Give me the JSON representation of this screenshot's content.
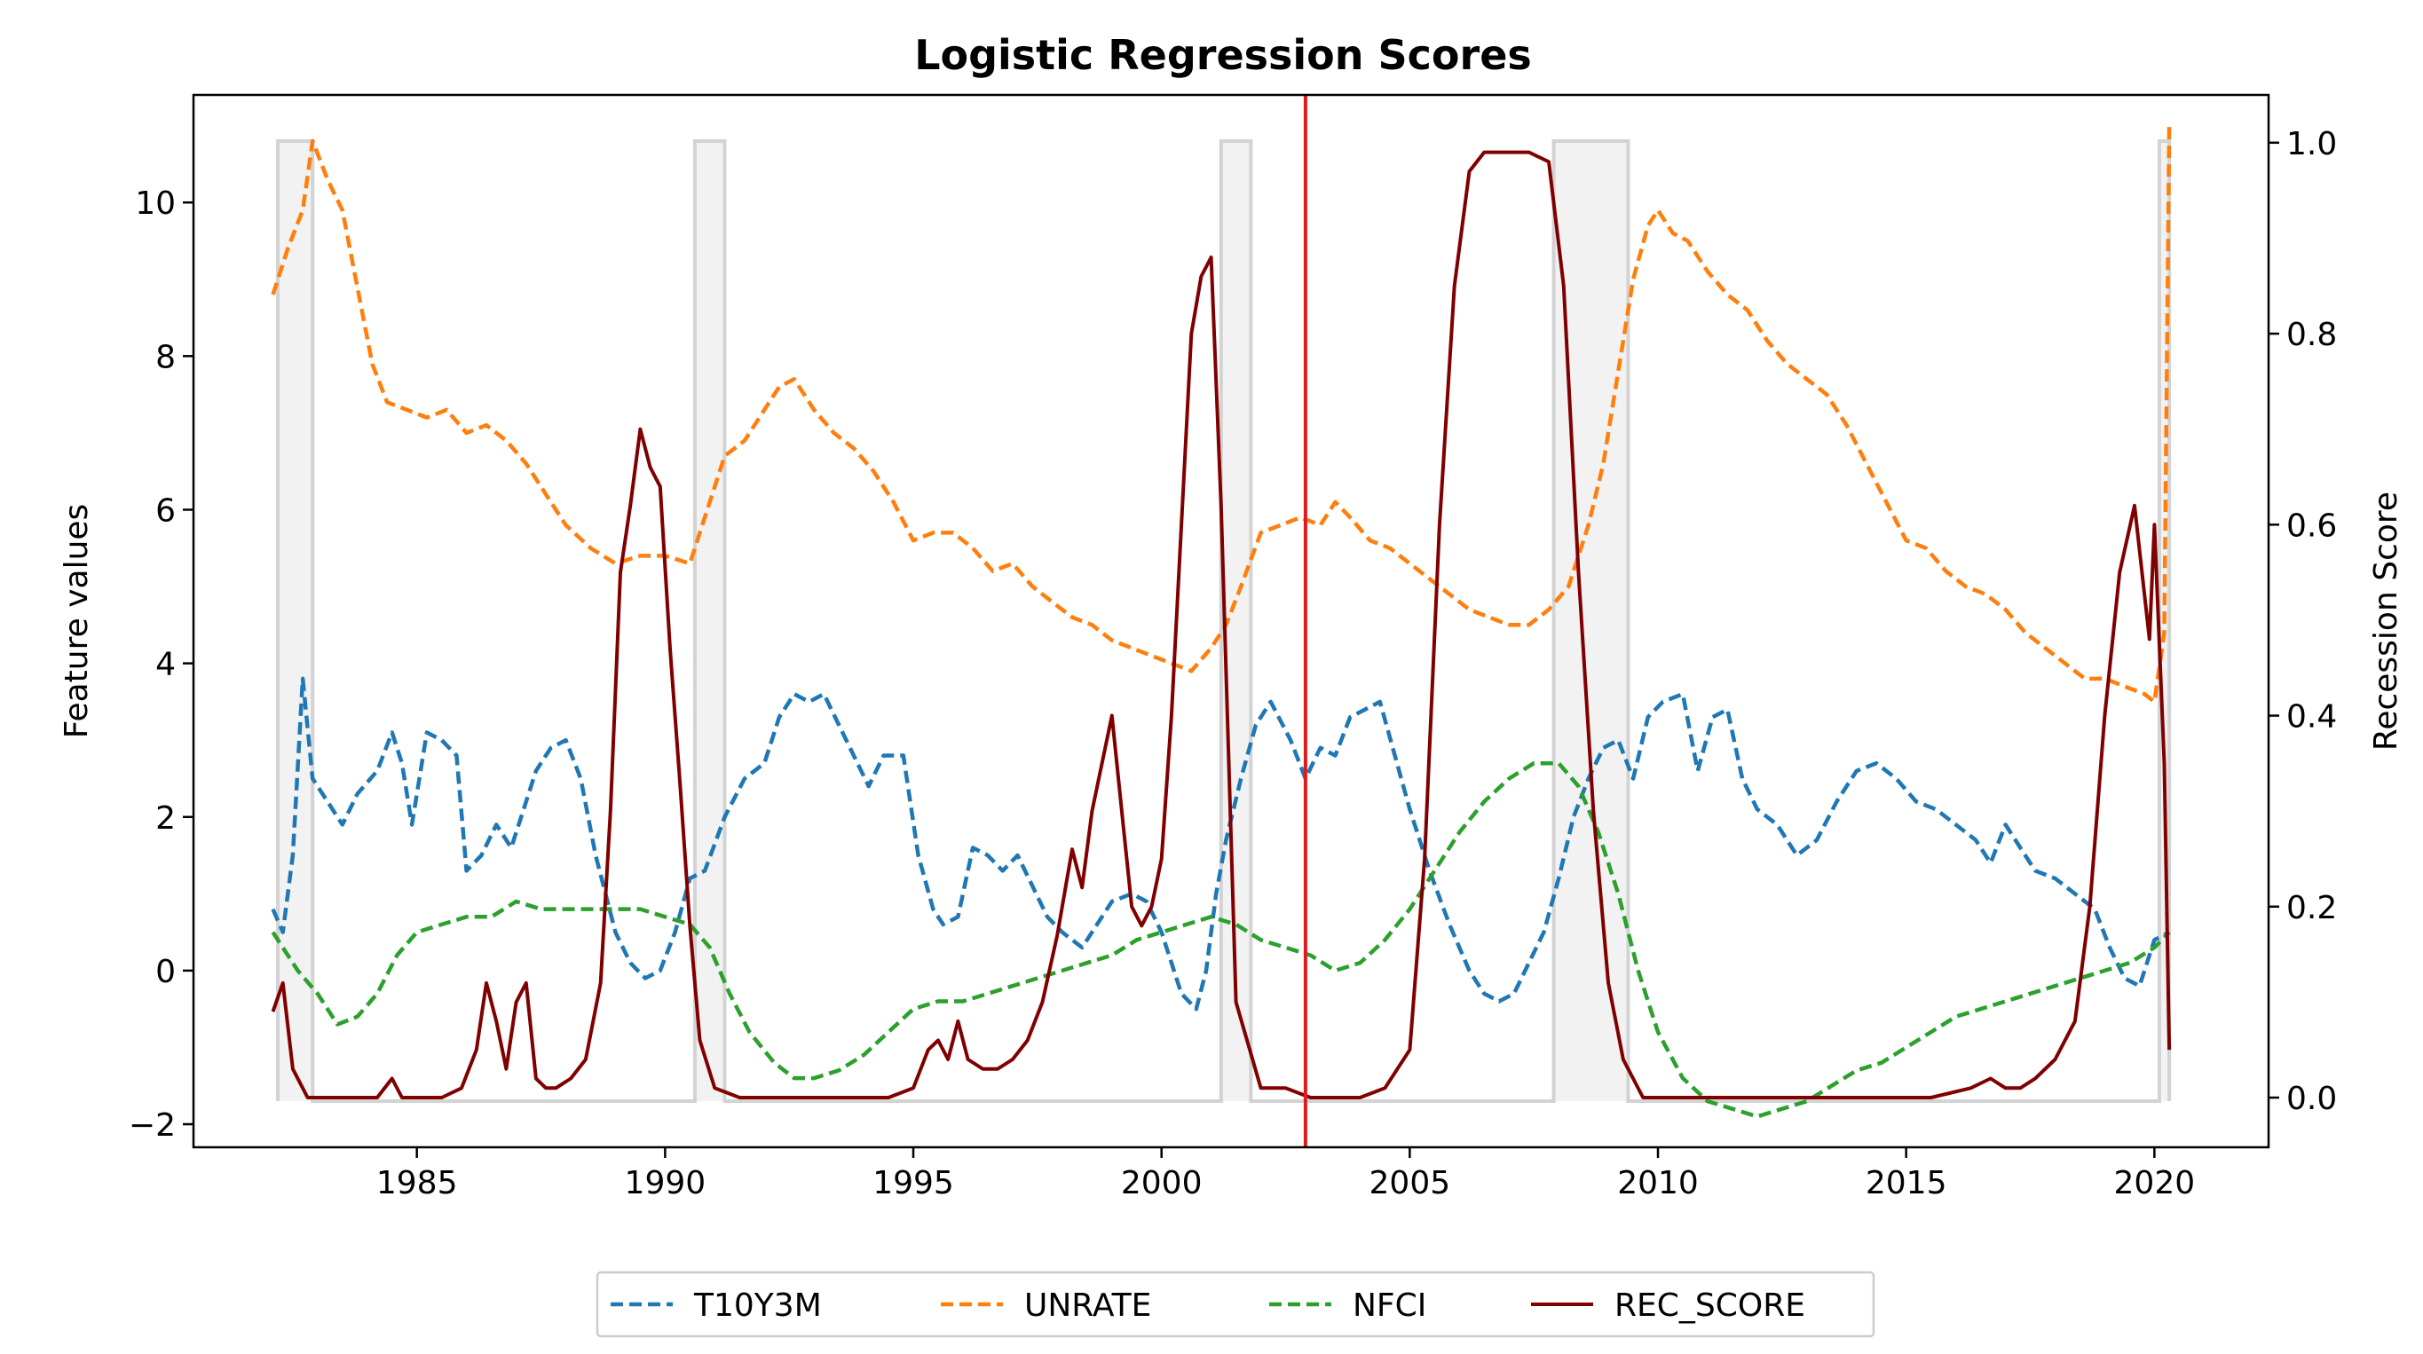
{
  "chart_data": {
    "type": "line",
    "title": "Logistic Regression Scores",
    "ylabel": "Feature values",
    "y2label": "Recession Score",
    "xlim": [
      1980.5,
      2022.3
    ],
    "ylim": [
      -2.3,
      11.4
    ],
    "y2lim": [
      -0.052,
      1.05
    ],
    "xticks": [
      1985,
      1990,
      1995,
      2000,
      2005,
      2010,
      2015,
      2020
    ],
    "yticks": [
      -2,
      0,
      2,
      4,
      6,
      8,
      10
    ],
    "y2ticks": [
      0.0,
      0.2,
      0.4,
      0.6,
      0.8,
      1.0
    ],
    "vline_x": 2002.9,
    "vline_color": "#e31a1c",
    "legend_position": "bottom-center",
    "recession_shading": {
      "color": "#d3d3d3",
      "low": -1.7,
      "high": 10.8,
      "periods": [
        [
          1982.2,
          1982.9
        ],
        [
          1990.6,
          1991.2
        ],
        [
          2001.2,
          2001.8
        ],
        [
          2007.9,
          2009.4
        ],
        [
          2020.1,
          2020.3
        ]
      ]
    },
    "series": [
      {
        "name": "T10Y3M",
        "axis": "left",
        "style": "dashed",
        "color": "#1f77b4",
        "x": [
          1982.1,
          1982.3,
          1982.5,
          1982.7,
          1982.9,
          1983.2,
          1983.5,
          1983.8,
          1984.2,
          1984.5,
          1984.7,
          1984.9,
          1985.2,
          1985.5,
          1985.8,
          1986.0,
          1986.3,
          1986.6,
          1986.9,
          1987.1,
          1987.4,
          1987.7,
          1988.0,
          1988.3,
          1988.6,
          1989.0,
          1989.3,
          1989.6,
          1989.9,
          1990.2,
          1990.5,
          1990.8,
          1991.2,
          1991.6,
          1992.0,
          1992.3,
          1992.6,
          1992.9,
          1993.2,
          1993.5,
          1993.8,
          1994.1,
          1994.4,
          1994.8,
          1995.1,
          1995.4,
          1995.6,
          1995.9,
          1996.2,
          1996.5,
          1996.8,
          1997.1,
          1997.4,
          1997.7,
          1998.0,
          1998.4,
          1998.7,
          1999.0,
          1999.4,
          1999.7,
          2000.0,
          2000.4,
          2000.7,
          2000.9,
          2001.1,
          2001.3,
          2001.6,
          2001.9,
          2002.2,
          2002.6,
          2002.9,
          2003.2,
          2003.5,
          2003.8,
          2004.1,
          2004.4,
          2004.7,
          2005.0,
          2005.4,
          2005.8,
          2006.2,
          2006.5,
          2006.8,
          2007.1,
          2007.4,
          2007.7,
          2008.0,
          2008.3,
          2008.6,
          2008.9,
          2009.2,
          2009.5,
          2009.8,
          2010.1,
          2010.5,
          2010.8,
          2011.1,
          2011.4,
          2011.7,
          2012.0,
          2012.4,
          2012.8,
          2013.2,
          2013.6,
          2014.0,
          2014.4,
          2014.8,
          2015.2,
          2015.6,
          2016.0,
          2016.4,
          2016.7,
          2017.0,
          2017.3,
          2017.6,
          2018.0,
          2018.4,
          2018.8,
          2019.1,
          2019.4,
          2019.7,
          2020.0,
          2020.3
        ],
        "values": [
          0.8,
          0.5,
          1.5,
          3.8,
          2.5,
          2.2,
          1.9,
          2.3,
          2.6,
          3.1,
          2.7,
          1.9,
          3.1,
          3.0,
          2.8,
          1.3,
          1.5,
          1.9,
          1.6,
          2.0,
          2.6,
          2.9,
          3.0,
          2.5,
          1.5,
          0.5,
          0.1,
          -0.1,
          0.0,
          0.5,
          1.2,
          1.3,
          2.0,
          2.5,
          2.7,
          3.3,
          3.6,
          3.5,
          3.6,
          3.2,
          2.8,
          2.4,
          2.8,
          2.8,
          1.5,
          0.8,
          0.6,
          0.7,
          1.6,
          1.5,
          1.3,
          1.5,
          1.1,
          0.7,
          0.5,
          0.3,
          0.6,
          0.9,
          1.0,
          0.9,
          0.5,
          -0.3,
          -0.5,
          0.0,
          1.0,
          1.7,
          2.5,
          3.2,
          3.5,
          3.0,
          2.5,
          2.9,
          2.8,
          3.3,
          3.4,
          3.5,
          2.8,
          2.1,
          1.3,
          0.6,
          0.0,
          -0.3,
          -0.4,
          -0.3,
          0.1,
          0.5,
          1.2,
          2.0,
          2.5,
          2.9,
          3.0,
          2.5,
          3.3,
          3.5,
          3.6,
          2.6,
          3.3,
          3.4,
          2.5,
          2.1,
          1.9,
          1.5,
          1.7,
          2.2,
          2.6,
          2.7,
          2.5,
          2.2,
          2.1,
          1.9,
          1.7,
          1.4,
          1.9,
          1.6,
          1.3,
          1.2,
          1.0,
          0.8,
          0.3,
          -0.1,
          -0.2,
          0.4,
          0.5
        ]
      },
      {
        "name": "UNRATE",
        "axis": "left",
        "style": "dashed",
        "color": "#ff7f0e",
        "x": [
          1982.1,
          1982.4,
          1982.7,
          1982.9,
          1983.2,
          1983.5,
          1983.8,
          1984.1,
          1984.4,
          1984.8,
          1985.2,
          1985.6,
          1986.0,
          1986.4,
          1986.8,
          1987.2,
          1987.6,
          1988.0,
          1988.5,
          1989.0,
          1989.5,
          1990.0,
          1990.5,
          1990.8,
          1991.2,
          1991.6,
          1992.0,
          1992.3,
          1992.6,
          1993.0,
          1993.4,
          1993.8,
          1994.2,
          1994.6,
          1995.0,
          1995.4,
          1995.8,
          1996.2,
          1996.6,
          1997.0,
          1997.4,
          1997.8,
          1998.2,
          1998.6,
          1999.0,
          1999.4,
          1999.8,
          2000.2,
          2000.6,
          2001.0,
          2001.3,
          2001.6,
          2002.0,
          2002.4,
          2002.8,
          2003.2,
          2003.5,
          2003.8,
          2004.2,
          2004.6,
          2005.0,
          2005.4,
          2005.8,
          2006.2,
          2006.6,
          2007.0,
          2007.4,
          2007.8,
          2008.2,
          2008.6,
          2008.9,
          2009.2,
          2009.5,
          2009.8,
          2010.0,
          2010.3,
          2010.6,
          2011.0,
          2011.4,
          2011.8,
          2012.2,
          2012.6,
          2013.0,
          2013.4,
          2013.8,
          2014.2,
          2014.6,
          2015.0,
          2015.4,
          2015.8,
          2016.2,
          2016.6,
          2017.0,
          2017.4,
          2017.8,
          2018.2,
          2018.6,
          2019.0,
          2019.4,
          2019.8,
          2020.0,
          2020.2,
          2020.3
        ],
        "values": [
          8.8,
          9.4,
          9.9,
          10.8,
          10.3,
          9.9,
          8.9,
          7.9,
          7.4,
          7.3,
          7.2,
          7.3,
          7.0,
          7.1,
          6.9,
          6.6,
          6.2,
          5.8,
          5.5,
          5.3,
          5.4,
          5.4,
          5.3,
          5.9,
          6.7,
          6.9,
          7.3,
          7.6,
          7.7,
          7.3,
          7.0,
          6.8,
          6.5,
          6.1,
          5.6,
          5.7,
          5.7,
          5.5,
          5.2,
          5.3,
          5.0,
          4.8,
          4.6,
          4.5,
          4.3,
          4.2,
          4.1,
          4.0,
          3.9,
          4.2,
          4.5,
          5.0,
          5.7,
          5.8,
          5.9,
          5.8,
          6.1,
          5.9,
          5.6,
          5.5,
          5.3,
          5.1,
          4.9,
          4.7,
          4.6,
          4.5,
          4.5,
          4.7,
          5.0,
          5.8,
          6.6,
          7.8,
          9.0,
          9.7,
          9.9,
          9.6,
          9.5,
          9.1,
          8.8,
          8.6,
          8.2,
          7.9,
          7.7,
          7.5,
          7.1,
          6.6,
          6.1,
          5.6,
          5.5,
          5.2,
          5.0,
          4.9,
          4.7,
          4.4,
          4.2,
          4.0,
          3.8,
          3.8,
          3.7,
          3.6,
          3.5,
          4.4,
          11.0
        ]
      },
      {
        "name": "NFCI",
        "axis": "left",
        "style": "dashed",
        "color": "#2ca02c",
        "x": [
          1982.1,
          1982.6,
          1983.0,
          1983.4,
          1983.8,
          1984.2,
          1984.6,
          1985.0,
          1985.5,
          1986.0,
          1986.5,
          1987.0,
          1987.5,
          1988.0,
          1988.5,
          1989.0,
          1989.5,
          1990.0,
          1990.5,
          1990.9,
          1991.3,
          1991.7,
          1992.2,
          1992.6,
          1993.0,
          1993.5,
          1994.0,
          1994.5,
          1995.0,
          1995.5,
          1996.0,
          1996.5,
          1997.0,
          1997.5,
          1998.0,
          1998.5,
          1999.0,
          1999.5,
          2000.0,
          2000.5,
          2001.0,
          2001.5,
          2002.0,
          2002.5,
          2003.0,
          2003.5,
          2004.0,
          2004.5,
          2005.0,
          2005.5,
          2006.0,
          2006.5,
          2007.0,
          2007.5,
          2008.0,
          2008.4,
          2008.8,
          2009.2,
          2009.6,
          2010.0,
          2010.5,
          2011.0,
          2011.5,
          2012.0,
          2012.5,
          2013.0,
          2013.5,
          2014.0,
          2014.5,
          2015.0,
          2015.5,
          2016.0,
          2016.5,
          2017.0,
          2017.5,
          2018.0,
          2018.5,
          2019.0,
          2019.5,
          2020.0,
          2020.3
        ],
        "values": [
          0.5,
          0.0,
          -0.3,
          -0.7,
          -0.6,
          -0.3,
          0.2,
          0.5,
          0.6,
          0.7,
          0.7,
          0.9,
          0.8,
          0.8,
          0.8,
          0.8,
          0.8,
          0.7,
          0.6,
          0.3,
          -0.3,
          -0.8,
          -1.2,
          -1.4,
          -1.4,
          -1.3,
          -1.1,
          -0.8,
          -0.5,
          -0.4,
          -0.4,
          -0.3,
          -0.2,
          -0.1,
          0.0,
          0.1,
          0.2,
          0.4,
          0.5,
          0.6,
          0.7,
          0.6,
          0.4,
          0.3,
          0.2,
          0.0,
          0.1,
          0.4,
          0.8,
          1.3,
          1.8,
          2.2,
          2.5,
          2.7,
          2.7,
          2.4,
          1.8,
          1.0,
          0.0,
          -0.8,
          -1.4,
          -1.7,
          -1.8,
          -1.9,
          -1.8,
          -1.7,
          -1.5,
          -1.3,
          -1.2,
          -1.0,
          -0.8,
          -0.6,
          -0.5,
          -0.4,
          -0.3,
          -0.2,
          -0.1,
          0.0,
          0.1,
          0.3,
          0.5
        ]
      },
      {
        "name": "REC_SCORE",
        "axis": "right",
        "style": "solid",
        "color": "#800000",
        "x": [
          1982.1,
          1982.3,
          1982.5,
          1982.8,
          1983.5,
          1984.2,
          1984.5,
          1984.7,
          1985.0,
          1985.5,
          1985.9,
          1986.2,
          1986.4,
          1986.6,
          1986.8,
          1987.0,
          1987.2,
          1987.4,
          1987.6,
          1987.8,
          1988.1,
          1988.4,
          1988.7,
          1988.9,
          1989.1,
          1989.3,
          1989.5,
          1989.7,
          1989.9,
          1990.1,
          1990.3,
          1990.5,
          1990.7,
          1991.0,
          1991.5,
          1992.5,
          1993.5,
          1994.5,
          1995.0,
          1995.3,
          1995.5,
          1995.7,
          1995.9,
          1996.1,
          1996.4,
          1996.7,
          1997.0,
          1997.3,
          1997.6,
          1997.9,
          1998.2,
          1998.4,
          1998.6,
          1998.8,
          1999.0,
          1999.2,
          1999.4,
          1999.6,
          1999.8,
          2000.0,
          2000.2,
          2000.4,
          2000.6,
          2000.8,
          2001.0,
          2001.2,
          2001.5,
          2002.0,
          2002.5,
          2003.0,
          2003.5,
          2004.0,
          2004.5,
          2005.0,
          2005.3,
          2005.6,
          2005.9,
          2006.2,
          2006.5,
          2006.9,
          2007.4,
          2007.8,
          2008.1,
          2008.4,
          2008.7,
          2009.0,
          2009.3,
          2009.7,
          2010.5,
          2012.0,
          2014.0,
          2015.5,
          2016.3,
          2016.7,
          2017.0,
          2017.3,
          2017.6,
          2018.0,
          2018.4,
          2018.7,
          2019.0,
          2019.3,
          2019.6,
          2019.9,
          2020.0,
          2020.2,
          2020.3
        ],
        "values": [
          0.09,
          0.12,
          0.03,
          0.0,
          0.0,
          0.0,
          0.02,
          0.0,
          0.0,
          0.0,
          0.01,
          0.05,
          0.12,
          0.08,
          0.03,
          0.1,
          0.12,
          0.02,
          0.01,
          0.01,
          0.02,
          0.04,
          0.12,
          0.3,
          0.55,
          0.62,
          0.7,
          0.66,
          0.64,
          0.47,
          0.33,
          0.18,
          0.06,
          0.01,
          0.0,
          0.0,
          0.0,
          0.0,
          0.01,
          0.05,
          0.06,
          0.04,
          0.08,
          0.04,
          0.03,
          0.03,
          0.04,
          0.06,
          0.1,
          0.17,
          0.26,
          0.22,
          0.3,
          0.35,
          0.4,
          0.3,
          0.2,
          0.18,
          0.2,
          0.25,
          0.4,
          0.6,
          0.8,
          0.86,
          0.88,
          0.62,
          0.1,
          0.01,
          0.01,
          0.0,
          0.0,
          0.0,
          0.01,
          0.05,
          0.25,
          0.6,
          0.85,
          0.97,
          0.99,
          0.99,
          0.99,
          0.98,
          0.85,
          0.55,
          0.3,
          0.12,
          0.04,
          0.0,
          0.0,
          0.0,
          0.0,
          0.0,
          0.01,
          0.02,
          0.01,
          0.01,
          0.02,
          0.04,
          0.08,
          0.2,
          0.4,
          0.55,
          0.62,
          0.48,
          0.6,
          0.35,
          0.05
        ]
      }
    ]
  }
}
